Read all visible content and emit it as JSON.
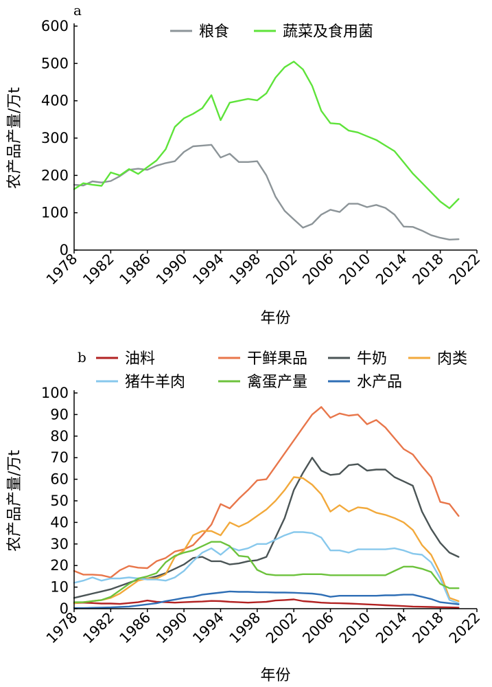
{
  "chart_data": [
    {
      "panel": "a",
      "type": "line",
      "xlabel": "年份",
      "ylabel": "农产品产量/万t",
      "xlim": [
        1978,
        2022
      ],
      "ylim": [
        0,
        600
      ],
      "xticks": [
        1978,
        1982,
        1986,
        1990,
        1994,
        1998,
        2002,
        2006,
        2010,
        2014,
        2018,
        2022
      ],
      "yticks": [
        0,
        100,
        200,
        300,
        400,
        500,
        600
      ],
      "legend": "top-right",
      "x": [
        1978,
        1979,
        1980,
        1981,
        1982,
        1983,
        1984,
        1985,
        1986,
        1987,
        1988,
        1989,
        1990,
        1991,
        1992,
        1993,
        1994,
        1995,
        1996,
        1997,
        1998,
        1999,
        2000,
        2001,
        2002,
        2003,
        2004,
        2005,
        2006,
        2007,
        2008,
        2009,
        2010,
        2011,
        2012,
        2013,
        2014,
        2015,
        2016,
        2017,
        2018,
        2019,
        2020
      ],
      "series": [
        {
          "name": "粮食",
          "color": "#8c9498",
          "values": [
            175,
            173,
            184,
            181,
            185,
            198,
            215,
            218,
            215,
            226,
            233,
            238,
            263,
            278,
            280,
            282,
            248,
            258,
            236,
            236,
            238,
            200,
            143,
            105,
            82,
            60,
            70,
            95,
            108,
            102,
            124,
            124,
            115,
            121,
            113,
            95,
            63,
            62,
            52,
            40,
            33,
            28,
            29
          ]
        },
        {
          "name": "蔬菜及食用菌",
          "color": "#5ee33a",
          "values": [
            163,
            179,
            175,
            172,
            208,
            200,
            217,
            204,
            222,
            240,
            270,
            330,
            353,
            365,
            380,
            415,
            348,
            395,
            400,
            405,
            401,
            420,
            462,
            490,
            505,
            484,
            440,
            373,
            340,
            338,
            320,
            315,
            305,
            295,
            280,
            265,
            235,
            205,
            180,
            155,
            130,
            112,
            137
          ]
        }
      ]
    },
    {
      "panel": "b",
      "type": "line",
      "xlabel": "年份",
      "ylabel": "农产品产量/万t",
      "xlim": [
        1978,
        2022
      ],
      "ylim": [
        0,
        100
      ],
      "xticks": [
        1978,
        1982,
        1986,
        1990,
        1994,
        1998,
        2002,
        2006,
        2010,
        2014,
        2018,
        2022
      ],
      "yticks": [
        0,
        10,
        20,
        30,
        40,
        50,
        60,
        70,
        80,
        90,
        100
      ],
      "legend": "top",
      "x": [
        1978,
        1979,
        1980,
        1981,
        1982,
        1983,
        1984,
        1985,
        1986,
        1987,
        1988,
        1989,
        1990,
        1991,
        1992,
        1993,
        1994,
        1995,
        1996,
        1997,
        1998,
        1999,
        2000,
        2001,
        2002,
        2003,
        2004,
        2005,
        2006,
        2007,
        2008,
        2009,
        2010,
        2011,
        2012,
        2013,
        2014,
        2015,
        2016,
        2017,
        2018,
        2019,
        2020
      ],
      "series": [
        {
          "name": "油料",
          "color": "#b22222",
          "values": [
            2.5,
            2.8,
            2.6,
            2.4,
            2.4,
            2.2,
            2.6,
            3.0,
            3.8,
            3.2,
            3.0,
            2.8,
            3.0,
            3.2,
            3.3,
            3.6,
            3.5,
            3.2,
            3.0,
            2.8,
            3.0,
            3.2,
            3.8,
            4.0,
            4.3,
            3.5,
            3.2,
            2.8,
            2.6,
            2.5,
            2.4,
            2.2,
            2.0,
            1.8,
            1.6,
            1.4,
            1.2,
            1.0,
            0.9,
            0.8,
            0.7,
            0.6,
            0.5
          ]
        },
        {
          "name": "干鲜果品",
          "color": "#e8764a",
          "values": [
            17.5,
            15.8,
            15.8,
            15.5,
            14.5,
            17.8,
            19.8,
            19.0,
            18.8,
            22.0,
            23.5,
            26.5,
            27.5,
            29.5,
            34.0,
            39.0,
            48.5,
            46.5,
            51.0,
            55.0,
            59.5,
            60.0,
            66.0,
            72.0,
            78.0,
            84.0,
            90.0,
            93.5,
            88.5,
            90.5,
            89.5,
            90.0,
            85.5,
            87.5,
            84.0,
            79.0,
            74.0,
            71.5,
            66.0,
            61.0,
            49.5,
            48.5,
            43.0
          ]
        },
        {
          "name": "牛奶",
          "color": "#4a5455",
          "values": [
            5.0,
            6.0,
            7.0,
            8.0,
            9.0,
            10.5,
            12.0,
            13.5,
            14.0,
            15.0,
            16.5,
            18.5,
            20.5,
            23.5,
            24.0,
            22.0,
            22.0,
            20.5,
            21.0,
            22.0,
            22.5,
            24.0,
            33.0,
            42.0,
            55.0,
            63.0,
            70.0,
            64.0,
            62.0,
            62.5,
            66.5,
            67.0,
            64.0,
            64.5,
            64.5,
            61.0,
            59.0,
            57.0,
            45.0,
            37.0,
            30.5,
            26.0,
            24.0
          ]
        },
        {
          "name": "肉类",
          "color": "#f2a93b",
          "values": [
            2.5,
            3.0,
            3.5,
            4.0,
            5.0,
            7.0,
            10.0,
            13.0,
            14.0,
            14.0,
            16.0,
            24.0,
            27.0,
            34.0,
            36.0,
            36.0,
            34.0,
            40.0,
            38.0,
            40.0,
            43.0,
            46.0,
            50.0,
            55.0,
            61.0,
            60.5,
            57.5,
            53.0,
            45.0,
            48.0,
            45.0,
            47.0,
            46.5,
            44.5,
            43.5,
            42.0,
            40.0,
            36.5,
            29.5,
            25.0,
            16.5,
            5.0,
            3.5
          ]
        },
        {
          "name": "猪牛羊肉",
          "color": "#87c8ec",
          "values": [
            12.0,
            13.0,
            14.5,
            13.0,
            14.0,
            14.0,
            14.5,
            14.0,
            13.5,
            13.5,
            13.0,
            14.5,
            17.5,
            22.0,
            26.0,
            28.0,
            25.0,
            28.5,
            27.0,
            28.0,
            30.0,
            30.0,
            32.0,
            34.0,
            35.5,
            35.5,
            35.0,
            33.0,
            27.0,
            27.0,
            26.0,
            27.5,
            27.5,
            27.5,
            27.5,
            28.0,
            27.0,
            25.5,
            25.0,
            21.5,
            14.0,
            4.0,
            2.5
          ]
        },
        {
          "name": "禽蛋产量",
          "color": "#6cc23c",
          "values": [
            3.0,
            3.0,
            3.5,
            4.0,
            5.5,
            8.5,
            11.5,
            14.0,
            15.0,
            16.5,
            21.5,
            24.5,
            26.0,
            27.0,
            29.0,
            31.0,
            31.0,
            29.0,
            24.5,
            24.0,
            18.0,
            16.0,
            15.5,
            15.5,
            15.5,
            16.0,
            16.0,
            16.0,
            15.5,
            15.5,
            15.5,
            15.5,
            15.5,
            15.5,
            15.5,
            17.5,
            19.5,
            19.5,
            18.5,
            17.0,
            11.5,
            9.5,
            9.5
          ]
        },
        {
          "name": "水产品",
          "color": "#2e6eb5",
          "values": [
            0.3,
            0.3,
            0.4,
            0.5,
            0.6,
            0.8,
            1.0,
            1.5,
            2.0,
            2.5,
            3.5,
            4.2,
            5.0,
            5.5,
            6.5,
            7.0,
            7.5,
            8.0,
            7.8,
            7.8,
            7.6,
            7.6,
            7.5,
            7.5,
            7.4,
            7.2,
            7.0,
            6.5,
            5.5,
            6.0,
            6.0,
            6.0,
            6.0,
            6.0,
            6.2,
            6.2,
            6.5,
            6.5,
            5.5,
            4.5,
            3.0,
            2.5,
            2.0
          ]
        }
      ]
    }
  ]
}
